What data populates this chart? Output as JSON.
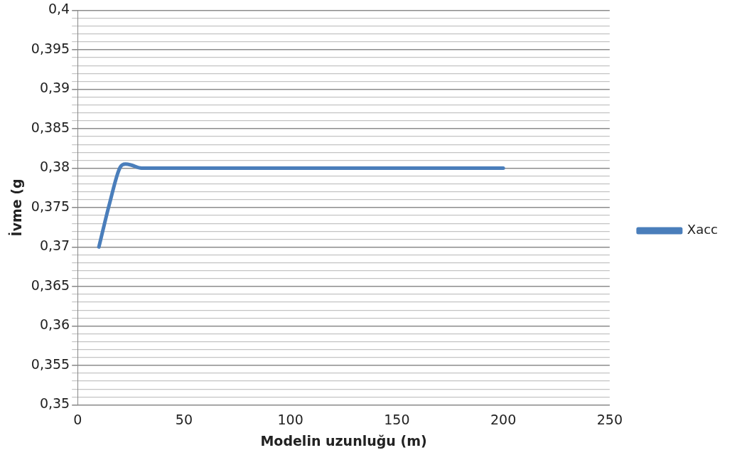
{
  "chart_data": {
    "type": "line",
    "xlabel": "Modelin uzunluğu (m)",
    "ylabel": "İvme (g",
    "series": [
      {
        "name": "Xacc",
        "color": "#4a7ebb",
        "x": [
          10,
          15,
          20,
          22.5,
          25,
          30,
          200
        ],
        "values": [
          0.37,
          0.3755,
          0.3801,
          0.3805,
          0.3804,
          0.38,
          0.38
        ]
      }
    ],
    "xlim": [
      0,
      250
    ],
    "xticks": [
      0,
      50,
      100,
      150,
      200,
      250
    ],
    "ylim": [
      0.35,
      0.4
    ],
    "yticks": [
      {
        "value": 0.35,
        "label": "0,35"
      },
      {
        "value": 0.351,
        "label": null
      },
      {
        "value": 0.352,
        "label": null
      },
      {
        "value": 0.353,
        "label": null
      },
      {
        "value": 0.354,
        "label": null
      },
      {
        "value": 0.355,
        "label": "0,355"
      },
      {
        "value": 0.356,
        "label": null
      },
      {
        "value": 0.357,
        "label": null
      },
      {
        "value": 0.358,
        "label": null
      },
      {
        "value": 0.359,
        "label": null
      },
      {
        "value": 0.36,
        "label": "0,36"
      },
      {
        "value": 0.361,
        "label": null
      },
      {
        "value": 0.362,
        "label": null
      },
      {
        "value": 0.363,
        "label": null
      },
      {
        "value": 0.364,
        "label": null
      },
      {
        "value": 0.365,
        "label": "0,365"
      },
      {
        "value": 0.366,
        "label": null
      },
      {
        "value": 0.367,
        "label": null
      },
      {
        "value": 0.368,
        "label": null
      },
      {
        "value": 0.369,
        "label": null
      },
      {
        "value": 0.37,
        "label": "0,37"
      },
      {
        "value": 0.371,
        "label": null
      },
      {
        "value": 0.372,
        "label": null
      },
      {
        "value": 0.373,
        "label": null
      },
      {
        "value": 0.374,
        "label": null
      },
      {
        "value": 0.375,
        "label": "0,375"
      },
      {
        "value": 0.376,
        "label": null
      },
      {
        "value": 0.377,
        "label": null
      },
      {
        "value": 0.378,
        "label": null
      },
      {
        "value": 0.379,
        "label": null
      },
      {
        "value": 0.38,
        "label": "0,38"
      },
      {
        "value": 0.381,
        "label": null
      },
      {
        "value": 0.382,
        "label": null
      },
      {
        "value": 0.383,
        "label": null
      },
      {
        "value": 0.384,
        "label": null
      },
      {
        "value": 0.385,
        "label": "0,385"
      },
      {
        "value": 0.386,
        "label": null
      },
      {
        "value": 0.387,
        "label": null
      },
      {
        "value": 0.388,
        "label": null
      },
      {
        "value": 0.389,
        "label": null
      },
      {
        "value": 0.39,
        "label": "0,39"
      },
      {
        "value": 0.391,
        "label": null
      },
      {
        "value": 0.392,
        "label": null
      },
      {
        "value": 0.393,
        "label": null
      },
      {
        "value": 0.394,
        "label": null
      },
      {
        "value": 0.395,
        "label": "0,395"
      },
      {
        "value": 0.396,
        "label": null
      },
      {
        "value": 0.397,
        "label": null
      },
      {
        "value": 0.398,
        "label": null
      },
      {
        "value": 0.399,
        "label": null
      },
      {
        "value": 0.4,
        "label": "0,4"
      }
    ],
    "grid": "y",
    "legend": "right",
    "marker": "none",
    "line_style": "solid"
  }
}
